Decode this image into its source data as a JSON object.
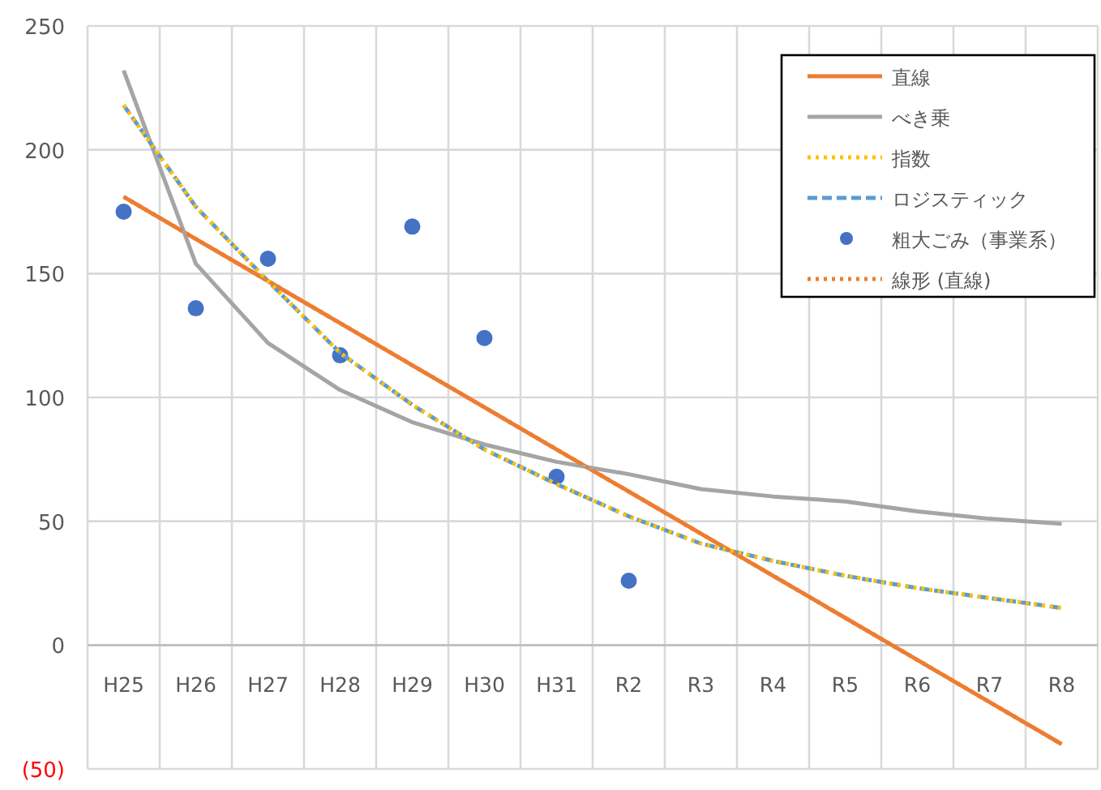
{
  "chart_data": {
    "type": "line",
    "categories": [
      "H25",
      "H26",
      "H27",
      "H28",
      "H29",
      "H30",
      "H31",
      "R2",
      "R3",
      "R4",
      "R5",
      "R6",
      "R7",
      "R8"
    ],
    "ylim": [
      -50,
      250
    ],
    "yticks": [
      {
        "value": -50,
        "label": "(50)"
      },
      0,
      50,
      100,
      150,
      200,
      250
    ],
    "grid": true,
    "legend": "top right",
    "series": [
      {
        "name": "直線",
        "color": "#ed7d31",
        "line_style": "solid",
        "values": [
          181,
          164,
          147,
          130,
          113,
          96,
          79,
          62,
          45,
          28,
          11,
          -6,
          -23,
          -40
        ]
      },
      {
        "name": "べき乗",
        "color": "#a5a5a5",
        "line_style": "solid",
        "values": [
          232,
          154,
          122,
          103,
          90,
          81,
          74,
          69,
          63,
          60,
          58,
          54,
          51,
          49
        ]
      },
      {
        "name": "指数",
        "color": "#ffc000",
        "line_style": "dotted",
        "values": [
          218,
          177,
          147,
          118,
          97,
          79,
          65,
          52,
          41,
          34,
          28,
          23,
          19,
          15
        ]
      },
      {
        "name": "ロジスティック",
        "color": "#5b9bd5",
        "line_style": "dashed",
        "values": [
          218,
          177,
          147,
          118,
          97,
          79,
          65,
          52,
          41,
          34,
          28,
          23,
          19,
          15
        ]
      },
      {
        "name": "粗大ごみ（事業系）",
        "color": "#4472c4",
        "type": "scatter",
        "marker": "circle",
        "values": [
          175,
          136,
          156,
          117,
          169,
          124,
          68,
          26,
          null,
          null,
          null,
          null,
          null,
          null
        ]
      },
      {
        "name": "線形 (直線)",
        "color": "#ed7d31",
        "line_style": "dotted",
        "values": [
          181,
          164,
          147,
          130,
          113,
          96,
          79,
          62,
          45,
          28,
          11,
          -6,
          -23,
          -40
        ]
      }
    ]
  }
}
